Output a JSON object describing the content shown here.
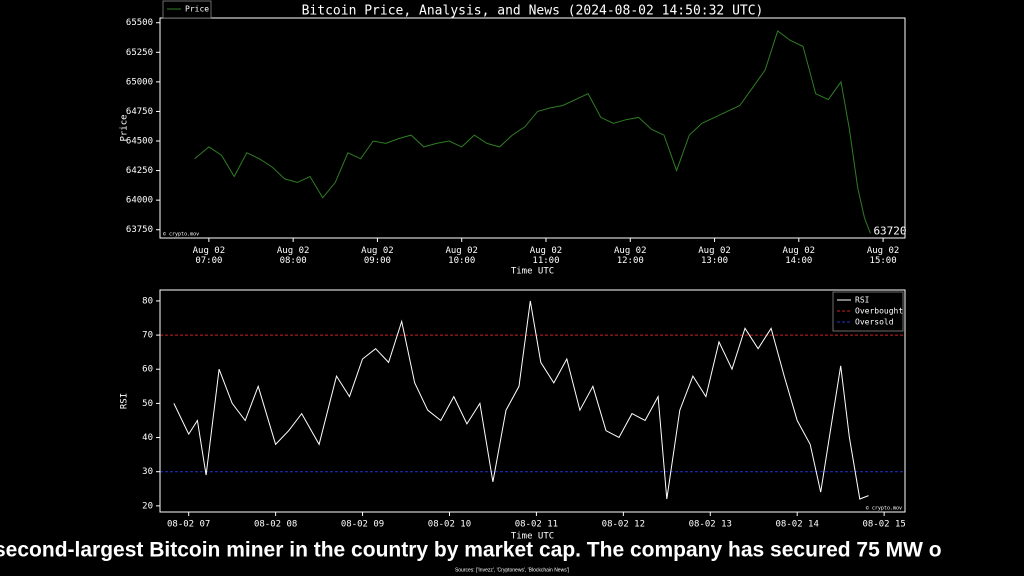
{
  "charts": [
    {
      "type": "line",
      "title": "Bitcoin Price, Analysis, and News (2024-08-02 14:50:32 UTC)",
      "xlabel": "Time UTC",
      "ylabel": "Price",
      "watermark": "© crypto.mov",
      "legend": "upper left",
      "last_value_label": true,
      "xlim": [
        6.42,
        15.26
      ],
      "ylim": [
        63680,
        65540
      ],
      "xticks": [
        {
          "value": 7,
          "label": "Aug 02\n07:00"
        },
        {
          "value": 8,
          "label": "Aug 02\n08:00"
        },
        {
          "value": 9,
          "label": "Aug 02\n09:00"
        },
        {
          "value": 10,
          "label": "Aug 02\n10:00"
        },
        {
          "value": 11,
          "label": "Aug 02\n11:00"
        },
        {
          "value": 12,
          "label": "Aug 02\n12:00"
        },
        {
          "value": 13,
          "label": "Aug 02\n13:00"
        },
        {
          "value": 14,
          "label": "Aug 02\n14:00"
        },
        {
          "value": 15,
          "label": "Aug 02\n15:00"
        }
      ],
      "yticks": [
        63750,
        64000,
        64250,
        64500,
        64750,
        65000,
        65250,
        65500
      ],
      "series": [
        {
          "name": "Price",
          "color": "#2f7d24",
          "x": [
            6.83,
            7.0,
            7.15,
            7.3,
            7.45,
            7.6,
            7.75,
            7.9,
            8.05,
            8.2,
            8.35,
            8.5,
            8.65,
            8.8,
            8.95,
            9.1,
            9.25,
            9.4,
            9.55,
            9.7,
            9.85,
            10.0,
            10.15,
            10.3,
            10.45,
            10.6,
            10.75,
            10.9,
            11.05,
            11.2,
            11.35,
            11.5,
            11.65,
            11.8,
            11.95,
            12.1,
            12.25,
            12.4,
            12.55,
            12.7,
            12.85,
            13.0,
            13.15,
            13.3,
            13.45,
            13.6,
            13.75,
            13.9,
            14.05,
            14.2,
            14.35,
            14.5,
            14.6,
            14.7,
            14.78,
            14.85
          ],
          "values": [
            64350,
            64450,
            64380,
            64200,
            64400,
            64350,
            64280,
            64180,
            64150,
            64200,
            64020,
            64150,
            64400,
            64350,
            64500,
            64480,
            64520,
            64550,
            64450,
            64480,
            64500,
            64450,
            64550,
            64480,
            64450,
            64550,
            64620,
            64750,
            64780,
            64800,
            64850,
            64900,
            64700,
            64650,
            64680,
            64700,
            64600,
            64550,
            64250,
            64550,
            64650,
            64700,
            64750,
            64800,
            64950,
            65100,
            65430,
            65350,
            65300,
            64900,
            64850,
            65000,
            64600,
            64100,
            63850,
            63720
          ]
        }
      ],
      "hlines": []
    },
    {
      "type": "line",
      "xlabel": "Time UTC",
      "ylabel": "RSI",
      "watermark": "© crypto.mov",
      "legend": "upper right",
      "last_value_label": false,
      "xlim": [
        6.67,
        15.24
      ],
      "ylim": [
        18.2,
        83.2
      ],
      "xticks": [
        {
          "value": 7,
          "label": "08-02 07"
        },
        {
          "value": 8,
          "label": "08-02 08"
        },
        {
          "value": 9,
          "label": "08-02 09"
        },
        {
          "value": 10,
          "label": "08-02 10"
        },
        {
          "value": 11,
          "label": "08-02 11"
        },
        {
          "value": 12,
          "label": "08-02 12"
        },
        {
          "value": 13,
          "label": "08-02 13"
        },
        {
          "value": 14,
          "label": "08-02 14"
        },
        {
          "value": 15,
          "label": "08-02 15"
        }
      ],
      "yticks": [
        20,
        30,
        40,
        50,
        60,
        70,
        80
      ],
      "series": [
        {
          "name": "RSI",
          "color": "#ffffff",
          "x": [
            6.83,
            7.0,
            7.1,
            7.2,
            7.35,
            7.5,
            7.65,
            7.8,
            8.0,
            8.15,
            8.3,
            8.5,
            8.7,
            8.85,
            9.0,
            9.15,
            9.3,
            9.45,
            9.6,
            9.75,
            9.9,
            10.05,
            10.2,
            10.35,
            10.5,
            10.65,
            10.8,
            10.93,
            11.05,
            11.2,
            11.35,
            11.5,
            11.65,
            11.8,
            11.95,
            12.1,
            12.25,
            12.4,
            12.5,
            12.65,
            12.8,
            12.95,
            13.1,
            13.25,
            13.4,
            13.55,
            13.7,
            13.85,
            14.0,
            14.15,
            14.27,
            14.4,
            14.5,
            14.6,
            14.72,
            14.82
          ],
          "values": [
            50,
            41,
            45,
            29,
            60,
            50,
            45,
            55,
            38,
            42,
            47,
            38,
            58,
            52,
            63,
            66,
            62,
            74,
            56,
            48,
            45,
            52,
            44,
            50,
            27,
            48,
            55,
            80,
            62,
            56,
            63,
            48,
            55,
            42,
            40,
            47,
            45,
            52,
            22,
            48,
            58,
            52,
            68,
            60,
            72,
            66,
            72,
            58,
            45,
            38,
            24,
            45,
            61,
            40,
            22,
            23
          ]
        }
      ],
      "hlines": [
        {
          "name": "Overbought",
          "value": 70,
          "color": "#cc2222"
        },
        {
          "name": "Oversold",
          "value": 30,
          "color": "#2233cc"
        }
      ]
    }
  ],
  "caption": "second-largest Bitcoin miner in the country by market cap. The company has secured 75 MW o",
  "sources": "Sources: ['Invezz', 'Cryptonews', 'Blockchain News']"
}
